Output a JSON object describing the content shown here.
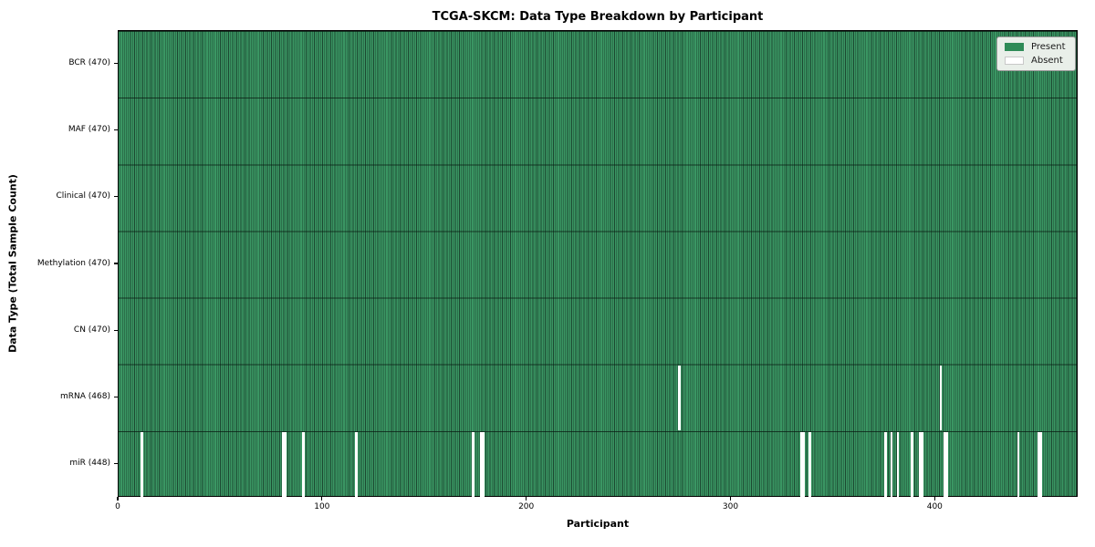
{
  "title": "TCGA-SKCM: Data Type Breakdown by Participant",
  "chart_data": {
    "type": "heatmap",
    "title": "TCGA-SKCM: Data Type Breakdown by Participant",
    "xlabel": "Participant",
    "ylabel": "Data Type (Total Sample Count)",
    "x_ticks": [
      0,
      100,
      200,
      300,
      400
    ],
    "x_range": [
      0,
      470
    ],
    "n_participants": 470,
    "grid": "row-separators-only",
    "legend": {
      "position": "upper-right",
      "present_label": "Present",
      "absent_label": "Absent"
    },
    "colors": {
      "present": "#2e8b57",
      "absent": "#ffffff",
      "bar_edge": "#1c4831",
      "legend_bg": "#e9efe9"
    },
    "rows": [
      {
        "label": "BCR (470)",
        "data_type": "BCR",
        "present_count": 470,
        "absent_participants": []
      },
      {
        "label": "MAF (470)",
        "data_type": "MAF",
        "present_count": 470,
        "absent_participants": []
      },
      {
        "label": "Clinical (470)",
        "data_type": "Clinical",
        "present_count": 470,
        "absent_participants": []
      },
      {
        "label": "Methylation (470)",
        "data_type": "Methylation",
        "present_count": 470,
        "absent_participants": []
      },
      {
        "label": "CN (470)",
        "data_type": "CN",
        "present_count": 470,
        "absent_participants": []
      },
      {
        "label": "mRNA (468)",
        "data_type": "mRNA",
        "present_count": 468,
        "absent_participants": [
          274,
          402
        ]
      },
      {
        "label": "miR (448)",
        "data_type": "miR",
        "present_count": 448,
        "absent_participants": [
          11,
          80,
          81,
          90,
          116,
          173,
          177,
          178,
          334,
          335,
          338,
          375,
          378,
          381,
          388,
          392,
          393,
          404,
          405,
          440,
          450,
          451
        ]
      }
    ]
  }
}
